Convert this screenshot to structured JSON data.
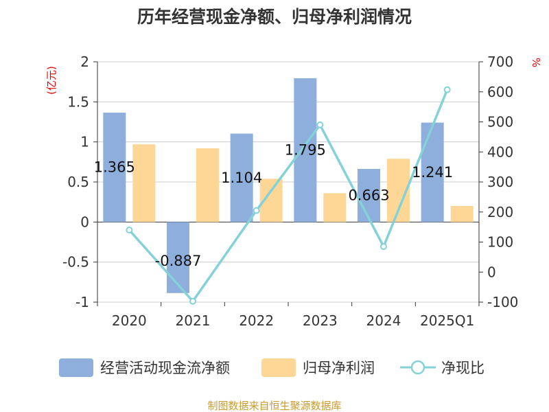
{
  "chart_data": {
    "type": "bar",
    "title": "历年经营现金净额、归母净利润情况",
    "categories": [
      "2020",
      "2021",
      "2022",
      "2023",
      "2024",
      "2025Q1"
    ],
    "series": [
      {
        "name": "经营活动现金流净额",
        "type": "bar",
        "axis": "left",
        "color": "#8eaedb",
        "values": [
          1.365,
          -0.887,
          1.104,
          1.795,
          0.663,
          1.241
        ]
      },
      {
        "name": "归母净利润",
        "type": "bar",
        "axis": "left",
        "color": "#fed797",
        "values": [
          0.97,
          0.92,
          0.54,
          0.36,
          0.79,
          0.2
        ]
      },
      {
        "name": "净现比",
        "type": "line",
        "axis": "right",
        "color": "#84d1d8",
        "values": [
          140,
          -97,
          205,
          490,
          85,
          607
        ]
      }
    ],
    "data_labels": [
      "1.365",
      "-0.887",
      "1.104",
      "1.795",
      "0.663",
      "1.241"
    ],
    "y_left": {
      "unit": "(亿元)",
      "min": -1,
      "max": 2,
      "ticks": [
        "-1",
        "-0.5",
        "0",
        "0.5",
        "1",
        "1.5",
        "2"
      ]
    },
    "y_right": {
      "unit": "%",
      "min": -100,
      "max": 700,
      "ticks": [
        "-100",
        "0",
        "100",
        "200",
        "300",
        "400",
        "500",
        "600",
        "700"
      ]
    },
    "grid": true,
    "legend_position": "bottom"
  },
  "source": "制图数据来自恒生聚源数据库"
}
